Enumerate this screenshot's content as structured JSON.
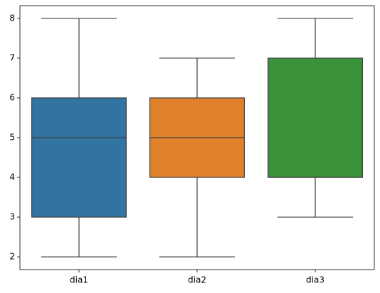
{
  "chart_data": {
    "type": "box",
    "categories": [
      "dia1",
      "dia2",
      "dia3"
    ],
    "colors": [
      "#3274a1",
      "#e1812c",
      "#3a923a"
    ],
    "min": [
      2,
      2,
      3
    ],
    "q1": [
      3,
      4,
      4
    ],
    "median": [
      5,
      5,
      4
    ],
    "q3": [
      6,
      6,
      7
    ],
    "max": [
      8,
      7,
      8
    ],
    "ylim": [
      1.68,
      8.32
    ],
    "yticks": [
      2,
      3,
      4,
      5,
      6,
      7,
      8
    ]
  }
}
